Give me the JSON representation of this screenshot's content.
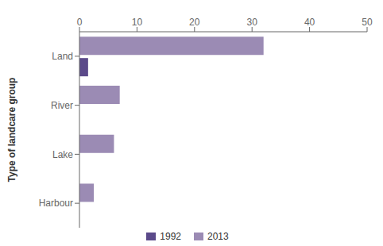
{
  "chart_data": {
    "type": "bar",
    "orientation": "horizontal",
    "categories": [
      "Land",
      "River",
      "Lake",
      "Harbour"
    ],
    "series": [
      {
        "name": "1992",
        "color": "#5b4a8a",
        "values": [
          1.5,
          0,
          0,
          0
        ]
      },
      {
        "name": "2013",
        "color": "#9b8bb4",
        "values": [
          32,
          7,
          6,
          2.5
        ]
      }
    ],
    "ylabel": "Type of landcare group",
    "xlim": [
      0,
      50
    ],
    "xticks": [
      0,
      10,
      20,
      30,
      40,
      50
    ],
    "legend": "bottom",
    "grid": false
  }
}
